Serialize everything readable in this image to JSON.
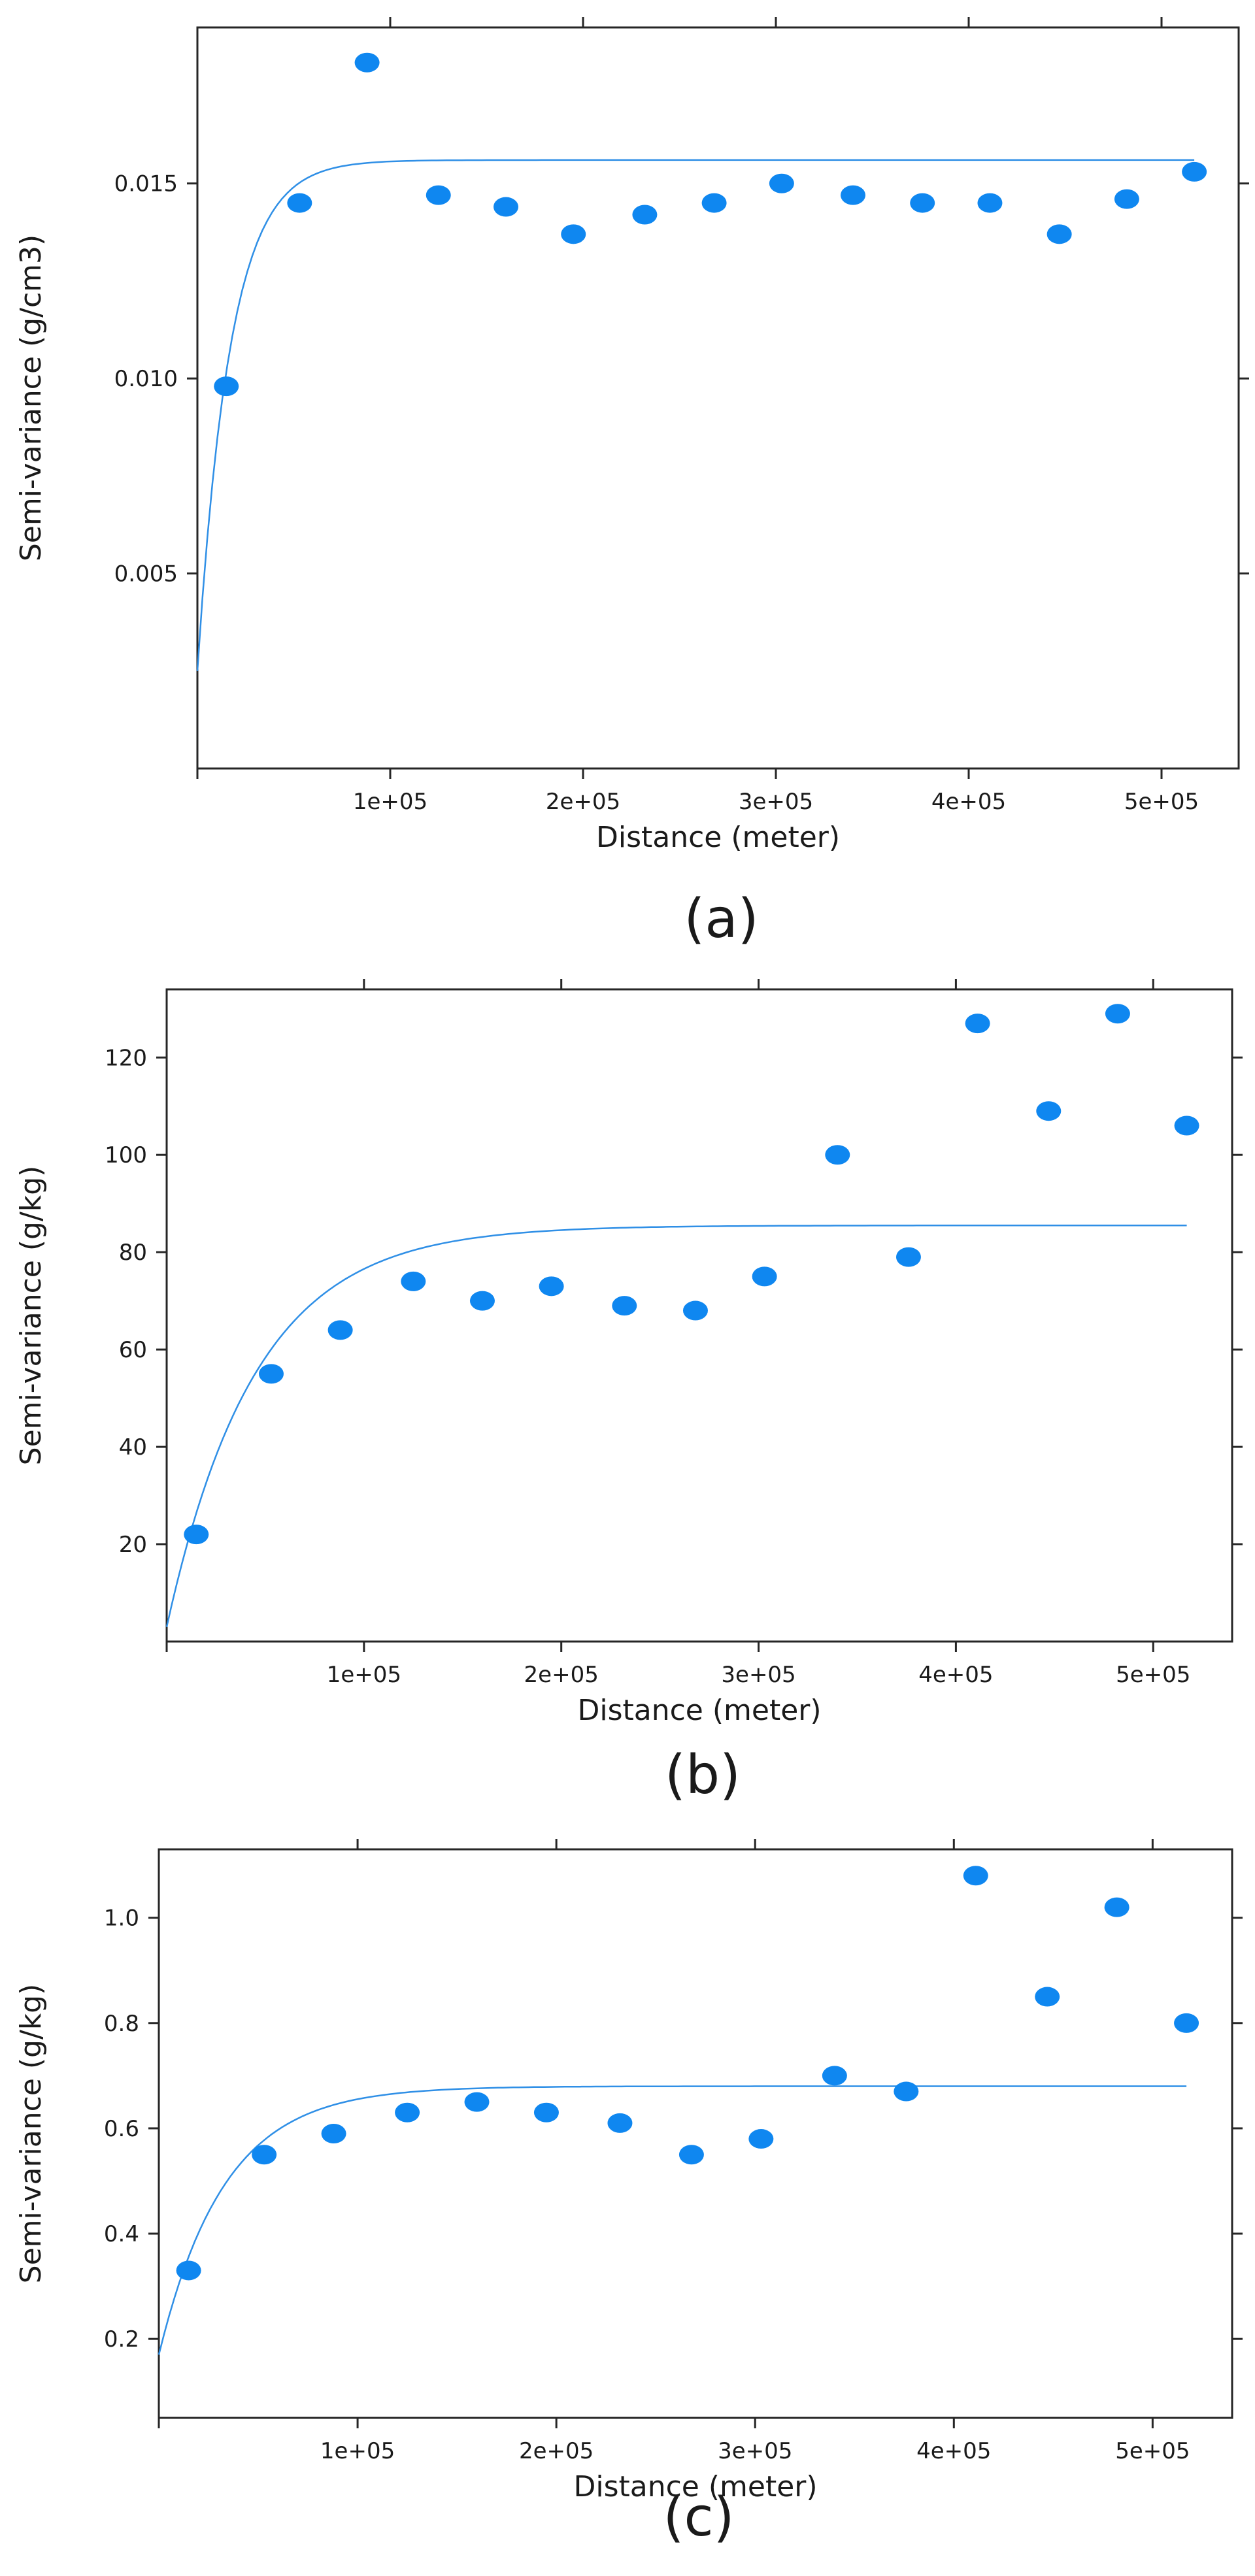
{
  "figure": {
    "marker_color": "#0f87f0",
    "line_color": "#2f8fe6"
  },
  "chart_data": [
    {
      "type": "scatter",
      "panel_label": "(a)",
      "xlabel": "Distance (meter)",
      "ylabel": "Semi-variance (g/cm3)",
      "xlim": [
        0,
        540000
      ],
      "ylim": [
        0,
        0.019
      ],
      "x_ticks": [
        100000,
        200000,
        300000,
        400000,
        500000
      ],
      "x_tick_labels": [
        "1e+05",
        "2e+05",
        "3e+05",
        "4e+05",
        "5e+05"
      ],
      "y_ticks": [
        0.005,
        0.01,
        0.015
      ],
      "y_tick_labels": [
        "0.005",
        "0.010",
        "0.015"
      ],
      "grid": false,
      "points": {
        "x": [
          15000,
          53000,
          88000,
          125000,
          160000,
          195000,
          232000,
          268000,
          303000,
          340000,
          376000,
          411000,
          447000,
          482000,
          517000
        ],
        "y": [
          0.0098,
          0.0145,
          0.0181,
          0.0147,
          0.0144,
          0.0137,
          0.0142,
          0.0145,
          0.015,
          0.0147,
          0.0145,
          0.0145,
          0.0137,
          0.0146,
          0.0153
        ]
      },
      "fitted_model": {
        "type": "exponential",
        "nugget": 0.0025,
        "partial_sill": 0.0131,
        "range": 17000,
        "x_end": 517000
      }
    },
    {
      "type": "scatter",
      "panel_label": "(b)",
      "xlabel": "Distance (meter)",
      "ylabel": "Semi-variance (g/kg)",
      "xlim": [
        0,
        540000
      ],
      "ylim": [
        0,
        134
      ],
      "x_ticks": [
        100000,
        200000,
        300000,
        400000,
        500000
      ],
      "x_tick_labels": [
        "1e+05",
        "2e+05",
        "3e+05",
        "4e+05",
        "5e+05"
      ],
      "y_ticks": [
        20,
        40,
        60,
        80,
        100,
        120
      ],
      "y_tick_labels": [
        "20",
        "40",
        "60",
        "80",
        "100",
        "120"
      ],
      "grid": false,
      "points": {
        "x": [
          15000,
          53000,
          88000,
          125000,
          160000,
          195000,
          232000,
          268000,
          303000,
          340000,
          376000,
          411000,
          447000,
          482000,
          517000
        ],
        "y": [
          22,
          55,
          64,
          74,
          70,
          73,
          69,
          68,
          75,
          100,
          79,
          127,
          109,
          129,
          106
        ]
      },
      "fitted_model": {
        "type": "exponential",
        "nugget": 3,
        "partial_sill": 82.5,
        "range": 45000,
        "x_end": 517000
      }
    },
    {
      "type": "scatter",
      "panel_label": "(c)",
      "xlabel": "Distance (meter)",
      "ylabel": "Semi-variance (g/kg)",
      "xlim": [
        0,
        540000
      ],
      "ylim": [
        0.05,
        1.13
      ],
      "x_ticks": [
        100000,
        200000,
        300000,
        400000,
        500000
      ],
      "x_tick_labels": [
        "1e+05",
        "2e+05",
        "3e+05",
        "4e+05",
        "5e+05"
      ],
      "y_ticks": [
        0.2,
        0.4,
        0.6,
        0.8,
        1.0
      ],
      "y_tick_labels": [
        "0.2",
        "0.4",
        "0.6",
        "0.8",
        "1.0"
      ],
      "grid": false,
      "points": {
        "x": [
          15000,
          53000,
          88000,
          125000,
          160000,
          195000,
          232000,
          268000,
          303000,
          340000,
          376000,
          411000,
          447000,
          482000,
          517000
        ],
        "y": [
          0.33,
          0.55,
          0.59,
          0.63,
          0.65,
          0.63,
          0.61,
          0.55,
          0.58,
          0.7,
          0.67,
          1.08,
          0.85,
          1.02,
          0.8
        ]
      },
      "fitted_model": {
        "type": "exponential",
        "nugget": 0.17,
        "partial_sill": 0.51,
        "range": 33000,
        "x_end": 517000
      }
    }
  ]
}
